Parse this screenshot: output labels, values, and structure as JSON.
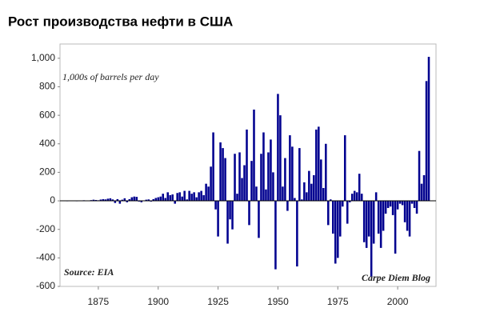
{
  "chart_data": {
    "type": "bar",
    "title": "Рост производства нефти в США",
    "annotations": [
      "1,000s of barrels per day",
      "Source: EIA",
      "Carpe Diem Blog"
    ],
    "color": "#00008f",
    "xlim": [
      1859,
      2016
    ],
    "ylim": [
      -600,
      1100
    ],
    "xticks": [
      1875,
      1900,
      1925,
      1950,
      1975,
      2000
    ],
    "yticks": [
      {
        "value": 1000,
        "label": "1,000"
      },
      800,
      600,
      400,
      200,
      0,
      -200,
      -400,
      -600
    ],
    "x": [
      1860,
      1861,
      1862,
      1863,
      1864,
      1865,
      1866,
      1867,
      1868,
      1869,
      1870,
      1871,
      1872,
      1873,
      1874,
      1875,
      1876,
      1877,
      1878,
      1879,
      1880,
      1881,
      1882,
      1883,
      1884,
      1885,
      1886,
      1887,
      1888,
      1889,
      1890,
      1891,
      1892,
      1893,
      1894,
      1895,
      1896,
      1897,
      1898,
      1899,
      1900,
      1901,
      1902,
      1903,
      1904,
      1905,
      1906,
      1907,
      1908,
      1909,
      1910,
      1911,
      1912,
      1913,
      1914,
      1915,
      1916,
      1917,
      1918,
      1919,
      1920,
      1921,
      1922,
      1923,
      1924,
      1925,
      1926,
      1927,
      1928,
      1929,
      1930,
      1931,
      1932,
      1933,
      1934,
      1935,
      1936,
      1937,
      1938,
      1939,
      1940,
      1941,
      1942,
      1943,
      1944,
      1945,
      1946,
      1947,
      1948,
      1949,
      1950,
      1951,
      1952,
      1953,
      1954,
      1955,
      1956,
      1957,
      1958,
      1959,
      1960,
      1961,
      1962,
      1963,
      1964,
      1965,
      1966,
      1967,
      1968,
      1969,
      1970,
      1971,
      1972,
      1973,
      1974,
      1975,
      1976,
      1977,
      1978,
      1979,
      1980,
      1981,
      1982,
      1983,
      1984,
      1985,
      1986,
      1987,
      1988,
      1989,
      1990,
      1991,
      1992,
      1993,
      1994,
      1995,
      1996,
      1997,
      1998,
      1999,
      2000,
      2001,
      2002,
      2003,
      2004,
      2005,
      2006,
      2007,
      2008,
      2009,
      2010,
      2011,
      2012,
      2013
    ],
    "values": [
      1,
      2,
      -2,
      3,
      1,
      2,
      -1,
      3,
      2,
      4,
      2,
      3,
      5,
      8,
      6,
      4,
      9,
      12,
      10,
      15,
      18,
      10,
      -15,
      12,
      -20,
      8,
      18,
      -10,
      12,
      25,
      30,
      28,
      -5,
      -10,
      2,
      8,
      10,
      -5,
      12,
      20,
      25,
      30,
      50,
      20,
      60,
      40,
      45,
      -20,
      55,
      60,
      30,
      70,
      10,
      70,
      50,
      60,
      25,
      60,
      70,
      40,
      120,
      100,
      240,
      480,
      -60,
      -250,
      410,
      370,
      300,
      -300,
      -130,
      -200,
      330,
      50,
      340,
      160,
      250,
      500,
      -170,
      280,
      640,
      100,
      -260,
      330,
      480,
      80,
      340,
      430,
      200,
      -480,
      750,
      600,
      100,
      300,
      -70,
      460,
      380,
      20,
      -460,
      370,
      10,
      130,
      60,
      210,
      120,
      180,
      500,
      520,
      290,
      90,
      400,
      -170,
      10,
      -230,
      -440,
      -400,
      -250,
      -40,
      460,
      -160,
      -10,
      50,
      70,
      60,
      190,
      50,
      -290,
      -330,
      -250,
      -530,
      -300,
      60,
      -230,
      -330,
      -210,
      -90,
      -50,
      -40,
      -100,
      -370,
      -60,
      -20,
      -30,
      -150,
      -210,
      -250,
      -20,
      -50,
      -90,
      350,
      120,
      180,
      840,
      1010
    ]
  }
}
